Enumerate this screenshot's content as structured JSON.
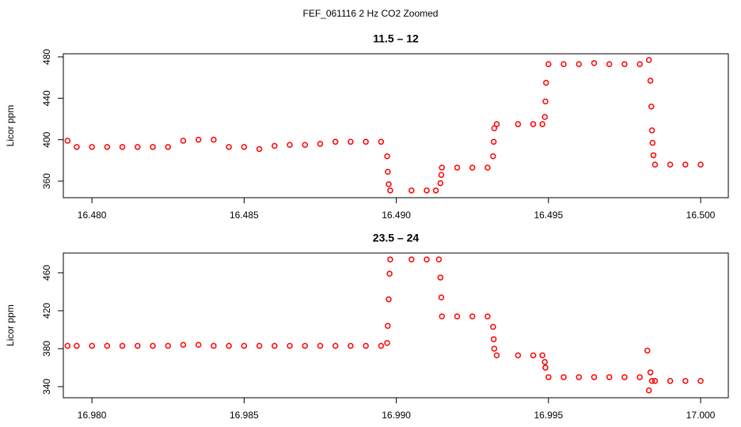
{
  "title": "FEF_061116  2 Hz CO2 Zoomed",
  "chart_data": [
    {
      "type": "scatter",
      "title": "11.5 – 12",
      "y_label": "Licor ppm",
      "color": "#ff0000",
      "xlim": [
        16.47906,
        16.50091
      ],
      "ylim": [
        344,
        483
      ],
      "xticks": [
        {
          "value": 16.48,
          "label": "16.480"
        },
        16.485,
        {
          "value": 16.49,
          "label": "16.490"
        },
        16.495,
        {
          "value": 16.5,
          "label": "16.500"
        }
      ],
      "yticks": [
        360,
        400,
        440,
        480
      ],
      "x": [
        16.4792,
        16.4795,
        16.48,
        16.4805,
        16.481,
        16.4815,
        16.482,
        16.4825,
        16.483,
        16.4835,
        16.484,
        16.4845,
        16.485,
        16.4855,
        16.486,
        16.4865,
        16.487,
        16.4875,
        16.488,
        16.4885,
        16.489,
        16.4895,
        16.4897,
        16.48972,
        16.48975,
        16.4898,
        16.4905,
        16.491,
        16.4913,
        16.49145,
        16.49148,
        16.4915,
        16.492,
        16.4925,
        16.493,
        16.49318,
        16.4932,
        16.49322,
        16.4933,
        16.494,
        16.4945,
        16.4948,
        16.49488,
        16.4949,
        16.49492,
        16.495,
        16.4955,
        16.496,
        16.4965,
        16.497,
        16.4975,
        16.498,
        16.4983,
        16.49835,
        16.49838,
        16.4984,
        16.49842,
        16.49845,
        16.4985,
        16.499,
        16.4995,
        16.5
      ],
      "values": [
        399,
        393,
        393,
        393,
        393,
        393,
        393,
        393,
        399,
        400,
        400,
        393,
        393,
        391,
        394,
        395,
        395,
        396,
        398,
        398,
        398,
        398,
        384,
        369,
        357,
        351,
        351,
        351,
        351,
        358,
        366,
        373,
        373,
        373,
        373,
        384,
        398,
        411,
        415,
        415,
        415,
        415,
        422,
        437,
        455,
        473,
        473,
        473,
        474,
        473,
        473,
        473,
        477,
        457,
        432,
        409,
        397,
        385,
        376,
        376,
        376,
        376
      ]
    },
    {
      "type": "scatter",
      "title": "23.5 – 24",
      "y_label": "Licor ppm",
      "color": "#ff0000",
      "xlim": [
        16.97906,
        17.00091
      ],
      "ylim": [
        328.3,
        480.8
      ],
      "xticks": [
        {
          "value": 16.98,
          "label": "16.980"
        },
        16.985,
        {
          "value": 16.99,
          "label": "16.990"
        },
        16.995,
        {
          "value": 17,
          "label": "17.000"
        }
      ],
      "yticks": [
        340,
        380,
        420,
        460
      ],
      "x": [
        16.9792,
        16.9795,
        16.98,
        16.9805,
        16.981,
        16.9815,
        16.982,
        16.9825,
        16.983,
        16.9835,
        16.984,
        16.9845,
        16.985,
        16.9855,
        16.986,
        16.9865,
        16.987,
        16.9875,
        16.988,
        16.9885,
        16.989,
        16.9895,
        16.9897,
        16.98972,
        16.98975,
        16.98978,
        16.9898,
        16.9905,
        16.991,
        16.9914,
        16.99145,
        16.99148,
        16.9915,
        16.992,
        16.9925,
        16.993,
        16.99318,
        16.9932,
        16.99322,
        16.9933,
        16.994,
        16.9945,
        16.9948,
        16.99488,
        16.9949,
        16.995,
        16.9955,
        16.996,
        16.9965,
        16.997,
        16.9975,
        16.998,
        16.99825,
        16.9983,
        16.99835,
        16.9984,
        16.9985,
        16.999,
        16.9995,
        17.0
      ],
      "values": [
        383,
        383,
        383,
        383,
        383,
        383,
        383,
        383,
        384,
        384,
        383,
        383,
        383,
        383,
        383,
        383,
        383,
        383,
        383,
        383,
        383,
        383,
        386,
        404,
        432,
        459,
        474,
        474,
        474,
        474,
        455,
        434,
        414,
        414,
        414,
        414,
        403,
        390,
        380,
        373,
        373,
        373,
        373,
        366,
        360,
        350,
        350,
        350,
        350,
        350,
        350,
        350,
        378,
        336,
        355,
        346,
        346,
        346,
        346,
        346
      ]
    }
  ]
}
